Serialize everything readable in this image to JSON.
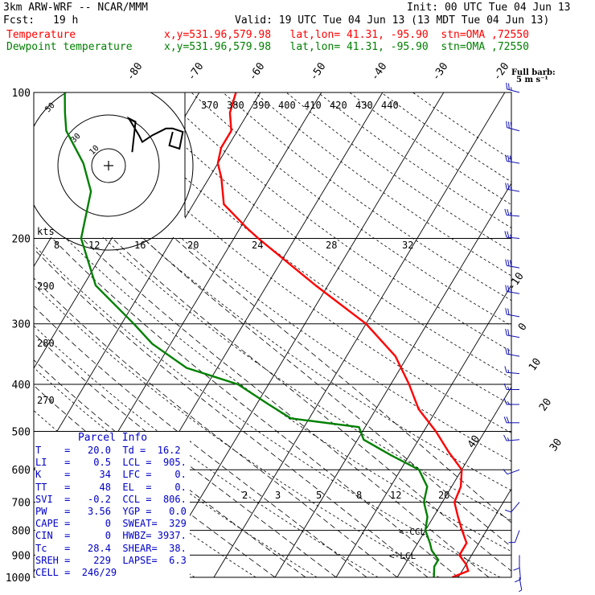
{
  "header": {
    "model": "3km ARW-WRF -- NCAR/MMM",
    "init": "Init: 00 UTC Tue 04 Jun 13",
    "fcst_label": "Fcst:",
    "fcst_value": "19 h",
    "valid": "Valid: 19 UTC Tue 04 Jun 13 (13 MDT Tue 04 Jun 13)",
    "temp_label": "Temperature",
    "dew_label": "Dewpoint temperature",
    "temp_loc": "x,y=531.96,579.98   lat,lon= 41.31, -95.90  stn=OMA ,72550",
    "dew_loc": "x,y=531.96,579.98   lat,lon= 41.31, -95.90  stn=OMA ,72550",
    "barb_note_1": "Full barb:",
    "barb_note_2": "5 m s⁻¹"
  },
  "parcel": {
    "title": "Parcel Info",
    "rows": [
      "T    =   20.0  Td =  16.2",
      "LI   =    0.5  LCL =  905.",
      "K    =     34  LFC =    0.",
      "TT   =     48  EL  =    0.",
      "SVI  =   -0.2  CCL =  806.",
      "PW   =   3.56  YGP =   0.0",
      "CAPE =      0  SWEAT=  329",
      "CIN  =      0  HWBZ= 3937.",
      "Tc   =   28.4  SHEAR=  38.",
      "SREH =    229  LAPSE=  6.3",
      "CELL =  246/29"
    ]
  },
  "colors": {
    "temperature": "#ff0000",
    "dewpoint": "#008000",
    "info": "#0000c8",
    "grid": "#000000"
  },
  "chart_data": {
    "type": "line",
    "subtype": "skew-T log-P sounding",
    "pressure_levels": [
      100,
      200,
      300,
      400,
      500,
      600,
      700,
      800,
      900,
      1000
    ],
    "pressure_tick_labels": [
      "100",
      "200",
      "300",
      "400",
      "500",
      "600",
      "700",
      "800",
      "900",
      "1000"
    ],
    "temperature_labels": [
      "-80",
      "-70",
      "-60",
      "-50",
      "-40",
      "-30",
      "-20",
      "-10",
      "0",
      "10",
      "20",
      "30",
      "40"
    ],
    "theta_labels_top": [
      "370",
      "380",
      "390",
      "400",
      "410",
      "420",
      "430",
      "440"
    ],
    "theta_labels_left": [
      "290",
      "280",
      "270"
    ],
    "mixing_ratio_labels": [
      "2",
      "3",
      "5",
      "8",
      "12",
      "20"
    ],
    "hodo_speed_labels": [
      "kts",
      "8",
      "12",
      "16",
      "20",
      "24",
      "28",
      "32"
    ],
    "hodo_ring_labels": [
      "50",
      "30",
      "10"
    ],
    "lcl_labels": [
      "<-CCL",
      "<-LCL"
    ],
    "series": [
      {
        "name": "Temperature",
        "color": "#ff0000",
        "points": [
          [
            1000,
            19
          ],
          [
            970,
            21
          ],
          [
            940,
            20
          ],
          [
            920,
            19
          ],
          [
            900,
            18
          ],
          [
            850,
            18
          ],
          [
            800,
            16
          ],
          [
            750,
            14
          ],
          [
            700,
            12
          ],
          [
            650,
            11.5
          ],
          [
            600,
            10
          ],
          [
            550,
            6
          ],
          [
            500,
            2
          ],
          [
            450,
            -3
          ],
          [
            400,
            -7
          ],
          [
            350,
            -12
          ],
          [
            300,
            -20
          ],
          [
            250,
            -32
          ],
          [
            200,
            -46
          ],
          [
            190,
            -49
          ],
          [
            170,
            -55
          ],
          [
            150,
            -58
          ],
          [
            140,
            -60
          ],
          [
            130,
            -61
          ],
          [
            120,
            -61
          ],
          [
            110,
            -63
          ],
          [
            100,
            -64
          ]
        ]
      },
      {
        "name": "Dewpoint temperature",
        "color": "#008000",
        "points": [
          [
            1000,
            16
          ],
          [
            950,
            15
          ],
          [
            920,
            15
          ],
          [
            880,
            13
          ],
          [
            850,
            12
          ],
          [
            800,
            10
          ],
          [
            750,
            9
          ],
          [
            700,
            7
          ],
          [
            650,
            6
          ],
          [
            600,
            3
          ],
          [
            560,
            -3
          ],
          [
            520,
            -9
          ],
          [
            490,
            -11
          ],
          [
            470,
            -23
          ],
          [
            440,
            -28
          ],
          [
            400,
            -35
          ],
          [
            370,
            -45
          ],
          [
            330,
            -53
          ],
          [
            300,
            -58
          ],
          [
            250,
            -68
          ],
          [
            200,
            -75
          ],
          [
            160,
            -78
          ],
          [
            140,
            -82
          ],
          [
            120,
            -88
          ],
          [
            110,
            -90
          ],
          [
            100,
            -92
          ]
        ]
      }
    ],
    "hodograph": {
      "rings_kts": [
        10,
        30,
        50
      ],
      "trace_uv": [
        [
          14,
          8
        ],
        [
          16,
          26
        ],
        [
          12,
          28
        ],
        [
          18,
          18
        ],
        [
          20,
          14
        ],
        [
          26,
          18
        ],
        [
          34,
          22
        ],
        [
          38,
          22
        ],
        [
          44,
          20
        ],
        [
          42,
          10
        ],
        [
          36,
          12
        ],
        [
          38,
          20
        ]
      ]
    },
    "wind_barbs": [
      {
        "p": 100,
        "spd": 25,
        "dir": 285
      },
      {
        "p": 120,
        "spd": 30,
        "dir": 285
      },
      {
        "p": 140,
        "spd": 30,
        "dir": 280
      },
      {
        "p": 160,
        "spd": 25,
        "dir": 280
      },
      {
        "p": 180,
        "spd": 25,
        "dir": 275
      },
      {
        "p": 200,
        "spd": 25,
        "dir": 275
      },
      {
        "p": 230,
        "spd": 30,
        "dir": 280
      },
      {
        "p": 260,
        "spd": 25,
        "dir": 280
      },
      {
        "p": 290,
        "spd": 20,
        "dir": 280
      },
      {
        "p": 320,
        "spd": 20,
        "dir": 280
      },
      {
        "p": 350,
        "spd": 20,
        "dir": 280
      },
      {
        "p": 380,
        "spd": 15,
        "dir": 275
      },
      {
        "p": 410,
        "spd": 15,
        "dir": 270
      },
      {
        "p": 440,
        "spd": 15,
        "dir": 270
      },
      {
        "p": 480,
        "spd": 20,
        "dir": 270
      },
      {
        "p": 520,
        "spd": 15,
        "dir": 265
      },
      {
        "p": 600,
        "spd": 10,
        "dir": 250
      },
      {
        "p": 700,
        "spd": 10,
        "dir": 220
      },
      {
        "p": 800,
        "spd": 10,
        "dir": 200
      },
      {
        "p": 900,
        "spd": 10,
        "dir": 180
      },
      {
        "p": 950,
        "spd": 10,
        "dir": 175
      },
      {
        "p": 1000,
        "spd": 5,
        "dir": 170
      }
    ]
  }
}
